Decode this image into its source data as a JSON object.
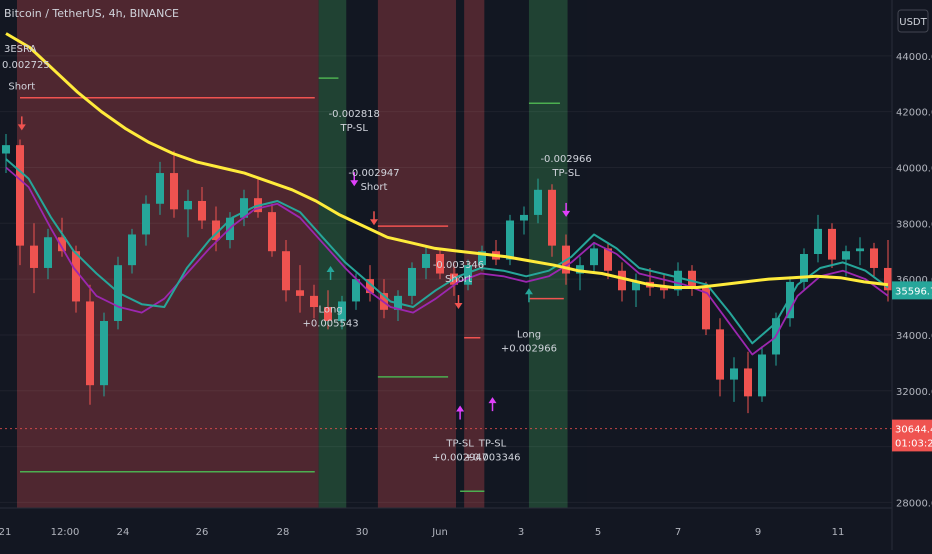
{
  "header": {
    "symbol_title": "Bitcoin / TetherUS, 4h, BINANCE",
    "strategy_name": "3ESRA",
    "strategy_value": "0.002725",
    "currency": "USDT"
  },
  "colors": {
    "background": "#131722",
    "red_zone": "#5a2a33",
    "green_zone": "#234a36",
    "candle_up": "#26a69a",
    "candle_down": "#ef5350",
    "sma_long": "#ffeb3b",
    "ema_fast": "#26a69a",
    "ema_slow": "#9c27b0",
    "target_red": "#f05350",
    "target_green": "#4caf50",
    "signal_arrow": "#e040fb"
  },
  "chart_data": {
    "type": "candlestick",
    "y_axis": {
      "ticks": [
        "44000.00",
        "42000.00",
        "40000.00",
        "38000.00",
        "36000.00",
        "34000.00",
        "32000.00",
        "30000.00",
        "28000.00"
      ],
      "ylim": [
        27800,
        46000
      ]
    },
    "x_axis": {
      "ticks": [
        {
          "label": "21",
          "x": 0
        },
        {
          "label": "12:00",
          "x": 1
        },
        {
          "label": "24",
          "x": 2
        },
        {
          "label": "26",
          "x": 3
        },
        {
          "label": "28",
          "x": 4
        },
        {
          "label": "30",
          "x": 5
        },
        {
          "label": "Jun",
          "x": 6
        },
        {
          "label": "3",
          "x": 7
        },
        {
          "label": "5",
          "x": 8
        },
        {
          "label": "7",
          "x": 9
        },
        {
          "label": "9",
          "x": 10
        },
        {
          "label": "11",
          "x": 11
        }
      ]
    },
    "price_labels": [
      {
        "text": "35596.70",
        "value": 35596.7,
        "color": "#26a69a"
      },
      {
        "text": "30644.41",
        "value": 30644.41,
        "color": "#ef5350"
      },
      {
        "text": "01:03:28",
        "value": 30150,
        "color": "#ef5350"
      }
    ],
    "crosshair_price": 30644.41,
    "zones": [
      {
        "color": "red",
        "from": 0.0,
        "to": 4.3
      },
      {
        "color": "green",
        "from": 4.3,
        "to": 4.65
      },
      {
        "color": "dark",
        "from": 4.65,
        "to": 5.05
      },
      {
        "color": "red",
        "from": 5.05,
        "to": 6.05
      },
      {
        "color": "dark",
        "from": 6.05,
        "to": 6.15
      },
      {
        "color": "red",
        "from": 6.15,
        "to": 6.4
      },
      {
        "color": "dark",
        "from": 6.4,
        "to": 6.95
      },
      {
        "color": "green",
        "from": 6.95,
        "to": 7.45
      },
      {
        "color": "dark",
        "from": 7.45,
        "to": 7.7
      }
    ],
    "target_lines": [
      {
        "color": "red",
        "price": 42500,
        "x_from": 0.05,
        "x_to": 4.25
      },
      {
        "color": "green",
        "price": 29100,
        "x_from": 0.05,
        "x_to": 4.25
      },
      {
        "color": "green",
        "price": 43200,
        "x_from": 4.3,
        "x_to": 4.55
      },
      {
        "color": "red",
        "price": 37900,
        "x_from": 5.05,
        "x_to": 5.95
      },
      {
        "color": "green",
        "price": 32500,
        "x_from": 5.05,
        "x_to": 5.95
      },
      {
        "color": "green",
        "price": 28400,
        "x_from": 6.1,
        "x_to": 6.4
      },
      {
        "color": "red",
        "price": 33900,
        "x_from": 6.15,
        "x_to": 6.35
      },
      {
        "color": "green",
        "price": 42300,
        "x_from": 6.95,
        "x_to": 7.35
      },
      {
        "color": "red",
        "price": 35300,
        "x_from": 6.95,
        "x_to": 7.4
      }
    ],
    "annotations": [
      {
        "lines": [
          "Short"
        ],
        "x": 0.08,
        "price": 42800,
        "arrow": "down",
        "arrow_color": "red",
        "arrow_price": 41400
      },
      {
        "lines": [
          "-0.002818",
          "TP-SL"
        ],
        "x": 4.75,
        "price": 41800,
        "arrow": "down",
        "arrow_color": "magenta",
        "arrow_price": 39400
      },
      {
        "lines": [
          "-0.002947",
          "Short"
        ],
        "x": 5.0,
        "price": 39700,
        "arrow": "down",
        "arrow_color": "red",
        "arrow_price": 38000
      },
      {
        "lines": [
          "Long",
          "+0.005543"
        ],
        "x": 4.45,
        "price": 34800,
        "arrow": "up",
        "arrow_color": "green",
        "arrow_price": 36400
      },
      {
        "lines": [
          "-0.003346",
          "Short"
        ],
        "x": 6.08,
        "price": 36400,
        "arrow": "down",
        "arrow_color": "red",
        "arrow_price": 35000
      },
      {
        "lines": [
          "Long",
          "+0.002966"
        ],
        "x": 6.95,
        "price": 33900,
        "arrow": "up",
        "arrow_color": "green",
        "arrow_price": 35600
      },
      {
        "lines": [
          "-0.002966",
          "TP-SL"
        ],
        "x": 7.43,
        "price": 40200,
        "arrow": "down",
        "arrow_color": "magenta",
        "arrow_price": 38300
      },
      {
        "lines": [
          "TP-SL",
          "+0.002947"
        ],
        "x": 6.1,
        "price": 30000,
        "arrow": "up",
        "arrow_color": "magenta",
        "arrow_price": 31400
      },
      {
        "lines": [
          "TP-SL",
          "+0.003346"
        ],
        "x": 6.5,
        "price": 30000,
        "arrow": "up",
        "arrow_color": "magenta",
        "arrow_price": 31700
      }
    ],
    "series_sma": [
      44800,
      44300,
      43500,
      42700,
      42000,
      41400,
      40900,
      40500,
      40200,
      40000,
      39800,
      39500,
      39200,
      38800,
      38300,
      37900,
      37500,
      37300,
      37100,
      37000,
      36900,
      36800,
      36650,
      36500,
      36300,
      36200,
      36000,
      35800,
      35700,
      35700,
      35800,
      35900,
      36000,
      36050,
      36100,
      36050,
      35900,
      35800
    ],
    "series_ema_fast": [
      40300,
      39600,
      38200,
      37000,
      36200,
      35500,
      35100,
      35000,
      36400,
      37400,
      38200,
      38600,
      38800,
      38400,
      37500,
      36600,
      35900,
      35200,
      35000,
      35600,
      36100,
      36400,
      36300,
      36100,
      36300,
      36800,
      37600,
      37100,
      36400,
      36200,
      36000,
      35800,
      34800,
      33700,
      34400,
      35800,
      36400,
      36600,
      36300,
      35700
    ],
    "series_ema_slow": [
      40000,
      39300,
      37800,
      36400,
      35400,
      35000,
      34800,
      35300,
      36200,
      37100,
      37900,
      38500,
      38700,
      38200,
      37300,
      36400,
      35600,
      35000,
      34800,
      35300,
      35900,
      36200,
      36100,
      35900,
      36100,
      36600,
      37300,
      36900,
      36200,
      36000,
      35800,
      35500,
      34400,
      33300,
      33900,
      35400,
      36100,
      36300,
      36000,
      35400
    ],
    "candles_ohlc": [
      [
        40500,
        41200,
        39800,
        40800
      ],
      [
        40800,
        41000,
        36500,
        37200
      ],
      [
        37200,
        38000,
        35500,
        36400
      ],
      [
        36400,
        37800,
        36000,
        37500
      ],
      [
        37500,
        38200,
        36800,
        37000
      ],
      [
        37000,
        37200,
        34800,
        35200
      ],
      [
        35200,
        35800,
        31500,
        32200
      ],
      [
        32200,
        34800,
        31800,
        34500
      ],
      [
        34500,
        36800,
        34200,
        36500
      ],
      [
        36500,
        37800,
        36200,
        37600
      ],
      [
        37600,
        39000,
        37200,
        38700
      ],
      [
        38700,
        40200,
        38300,
        39800
      ],
      [
        39800,
        40600,
        38200,
        38500
      ],
      [
        38500,
        39200,
        37500,
        38800
      ],
      [
        38800,
        39300,
        37800,
        38100
      ],
      [
        38100,
        38600,
        37000,
        37400
      ],
      [
        37400,
        38400,
        37100,
        38200
      ],
      [
        38200,
        39200,
        37900,
        38900
      ],
      [
        38900,
        39600,
        38200,
        38400
      ],
      [
        38400,
        38700,
        36800,
        37000
      ],
      [
        37000,
        37400,
        35200,
        35600
      ],
      [
        35600,
        36500,
        34800,
        35400
      ],
      [
        35400,
        35800,
        34600,
        35000
      ],
      [
        35000,
        35600,
        34200,
        34500
      ],
      [
        34500,
        35400,
        34200,
        35200
      ],
      [
        35200,
        36200,
        34900,
        36000
      ],
      [
        36000,
        36500,
        35200,
        35500
      ],
      [
        35500,
        36000,
        34600,
        34900
      ],
      [
        34900,
        35600,
        34500,
        35400
      ],
      [
        35400,
        36600,
        35100,
        36400
      ],
      [
        36400,
        37200,
        36000,
        36900
      ],
      [
        36900,
        37100,
        36000,
        36200
      ],
      [
        36200,
        36500,
        35400,
        35800
      ],
      [
        35800,
        36700,
        35600,
        36500
      ],
      [
        36500,
        37200,
        36300,
        37000
      ],
      [
        37000,
        37400,
        36500,
        36700
      ],
      [
        36700,
        38300,
        36500,
        38100
      ],
      [
        38100,
        38600,
        37600,
        38300
      ],
      [
        38300,
        39600,
        38000,
        39200
      ],
      [
        39200,
        39400,
        36800,
        37200
      ],
      [
        37200,
        37600,
        35800,
        36200
      ],
      [
        36200,
        36800,
        35600,
        36500
      ],
      [
        36500,
        37300,
        36200,
        37100
      ],
      [
        37100,
        37300,
        36000,
        36300
      ],
      [
        36300,
        36600,
        35200,
        35600
      ],
      [
        35600,
        36200,
        35000,
        35900
      ],
      [
        35900,
        36400,
        35400,
        35700
      ],
      [
        35700,
        36200,
        35300,
        35600
      ],
      [
        35600,
        36600,
        35400,
        36300
      ],
      [
        36300,
        36500,
        35400,
        35700
      ],
      [
        35700,
        35900,
        34000,
        34200
      ],
      [
        34200,
        34600,
        31800,
        32400
      ],
      [
        32400,
        33200,
        31600,
        32800
      ],
      [
        32800,
        33400,
        31200,
        31800
      ],
      [
        31800,
        33600,
        31600,
        33300
      ],
      [
        33300,
        34800,
        32900,
        34600
      ],
      [
        34600,
        36100,
        34300,
        35900
      ],
      [
        35900,
        37100,
        35600,
        36900
      ],
      [
        36900,
        38300,
        36600,
        37800
      ],
      [
        37800,
        38000,
        36400,
        36700
      ],
      [
        36700,
        37200,
        36100,
        37000
      ],
      [
        37000,
        37500,
        36500,
        37100
      ],
      [
        37100,
        37300,
        36100,
        36400
      ],
      [
        36400,
        37400,
        35200,
        35600
      ]
    ]
  }
}
